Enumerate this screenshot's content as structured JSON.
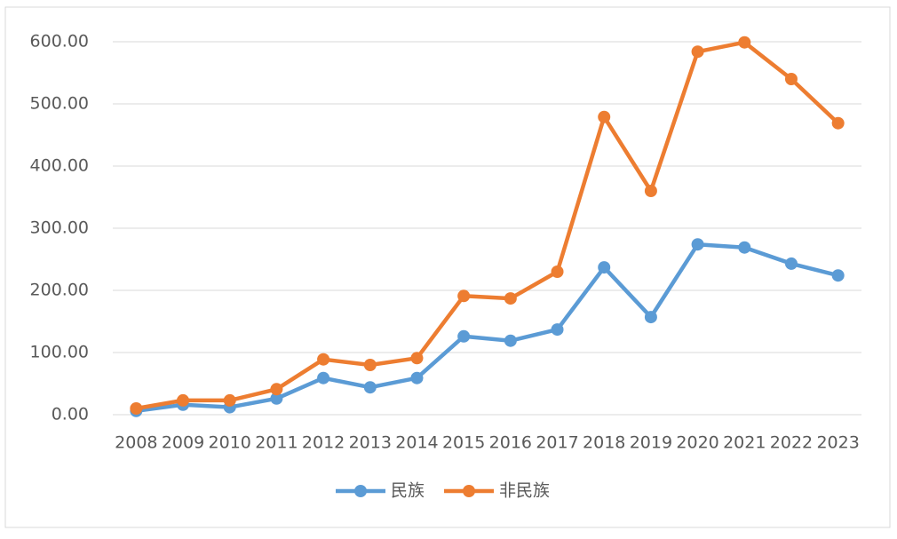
{
  "chart_data": {
    "type": "line",
    "categories": [
      "2008",
      "2009",
      "2010",
      "2011",
      "2012",
      "2013",
      "2014",
      "2015",
      "2016",
      "2017",
      "2018",
      "2019",
      "2020",
      "2021",
      "2022",
      "2023"
    ],
    "series": [
      {
        "name": "民族",
        "color": "#5b9bd5",
        "values": [
          6,
          16,
          12,
          26,
          59,
          44,
          59,
          126,
          119,
          137,
          237,
          157,
          274,
          269,
          243,
          224
        ]
      },
      {
        "name": "非民族",
        "color": "#ed7d31",
        "values": [
          10,
          23,
          23,
          41,
          89,
          80,
          91,
          191,
          187,
          230,
          479,
          360,
          584,
          599,
          540,
          469
        ]
      }
    ],
    "ylim": [
      0,
      600
    ],
    "yticks": [
      {
        "value": 0,
        "label": "0.00"
      },
      {
        "value": 100,
        "label": "100.00"
      },
      {
        "value": 200,
        "label": "200.00"
      },
      {
        "value": 300,
        "label": "300.00"
      },
      {
        "value": 400,
        "label": "400.00"
      },
      {
        "value": 500,
        "label": "500.00"
      },
      {
        "value": 600,
        "label": "600.00"
      }
    ],
    "grid": true,
    "legend": "bottom"
  }
}
